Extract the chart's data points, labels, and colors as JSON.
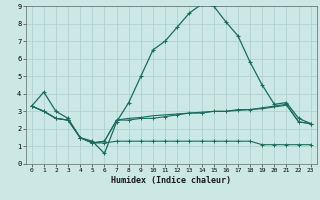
{
  "xlabel": "Humidex (Indice chaleur)",
  "xlim": [
    -0.5,
    23.5
  ],
  "ylim": [
    0,
    9
  ],
  "xticks": [
    0,
    1,
    2,
    3,
    4,
    5,
    6,
    7,
    8,
    9,
    10,
    11,
    12,
    13,
    14,
    15,
    16,
    17,
    18,
    19,
    20,
    21,
    22,
    23
  ],
  "yticks": [
    0,
    1,
    2,
    3,
    4,
    5,
    6,
    7,
    8,
    9
  ],
  "bg_color": "#cce8e4",
  "line_color": "#1a6b5e",
  "grid_color": "#aacfcc",
  "line1_x": [
    0,
    1,
    2,
    3,
    4,
    5,
    6,
    7,
    8,
    9,
    10,
    11,
    12,
    13,
    14,
    15,
    16,
    17,
    18,
    19,
    20,
    21,
    22,
    23
  ],
  "line1_y": [
    3.3,
    4.1,
    3.0,
    2.6,
    1.5,
    1.3,
    0.6,
    2.4,
    3.5,
    5.0,
    6.5,
    7.0,
    7.8,
    8.6,
    9.1,
    9.0,
    8.1,
    7.3,
    5.8,
    4.5,
    3.4,
    3.5,
    2.6,
    2.3
  ],
  "line2_x": [
    0,
    1,
    2,
    3,
    4,
    5,
    6,
    7,
    8,
    9,
    10,
    11,
    12,
    13,
    14,
    15,
    16,
    17,
    18,
    19,
    20,
    21,
    22,
    23
  ],
  "line2_y": [
    3.3,
    3.0,
    2.6,
    2.5,
    1.5,
    1.2,
    1.2,
    1.3,
    1.3,
    1.3,
    1.3,
    1.3,
    1.3,
    1.3,
    1.3,
    1.3,
    1.3,
    1.3,
    1.3,
    1.1,
    1.1,
    1.1,
    1.1,
    1.1
  ],
  "line3_x": [
    0,
    1,
    2,
    3,
    4,
    5,
    6,
    7,
    8,
    9,
    10,
    11,
    12,
    13,
    14,
    15,
    16,
    17,
    18,
    19,
    20,
    21,
    22,
    23
  ],
  "line3_y": [
    3.3,
    3.0,
    2.6,
    2.5,
    1.5,
    1.2,
    1.3,
    2.5,
    2.5,
    2.6,
    2.6,
    2.7,
    2.8,
    2.9,
    2.9,
    3.0,
    3.0,
    3.1,
    3.1,
    3.2,
    3.3,
    3.4,
    2.4,
    2.3
  ],
  "line4_x": [
    0,
    1,
    2,
    3,
    4,
    5,
    6,
    7,
    8,
    9,
    10,
    11,
    12,
    13,
    14,
    15,
    16,
    17,
    18,
    19,
    20,
    21,
    22,
    23
  ],
  "line4_y": [
    3.3,
    3.0,
    2.6,
    2.5,
    1.5,
    1.2,
    1.3,
    2.5,
    2.6,
    2.65,
    2.75,
    2.8,
    2.85,
    2.9,
    2.95,
    3.0,
    3.0,
    3.05,
    3.1,
    3.15,
    3.25,
    3.35,
    2.4,
    2.3
  ]
}
